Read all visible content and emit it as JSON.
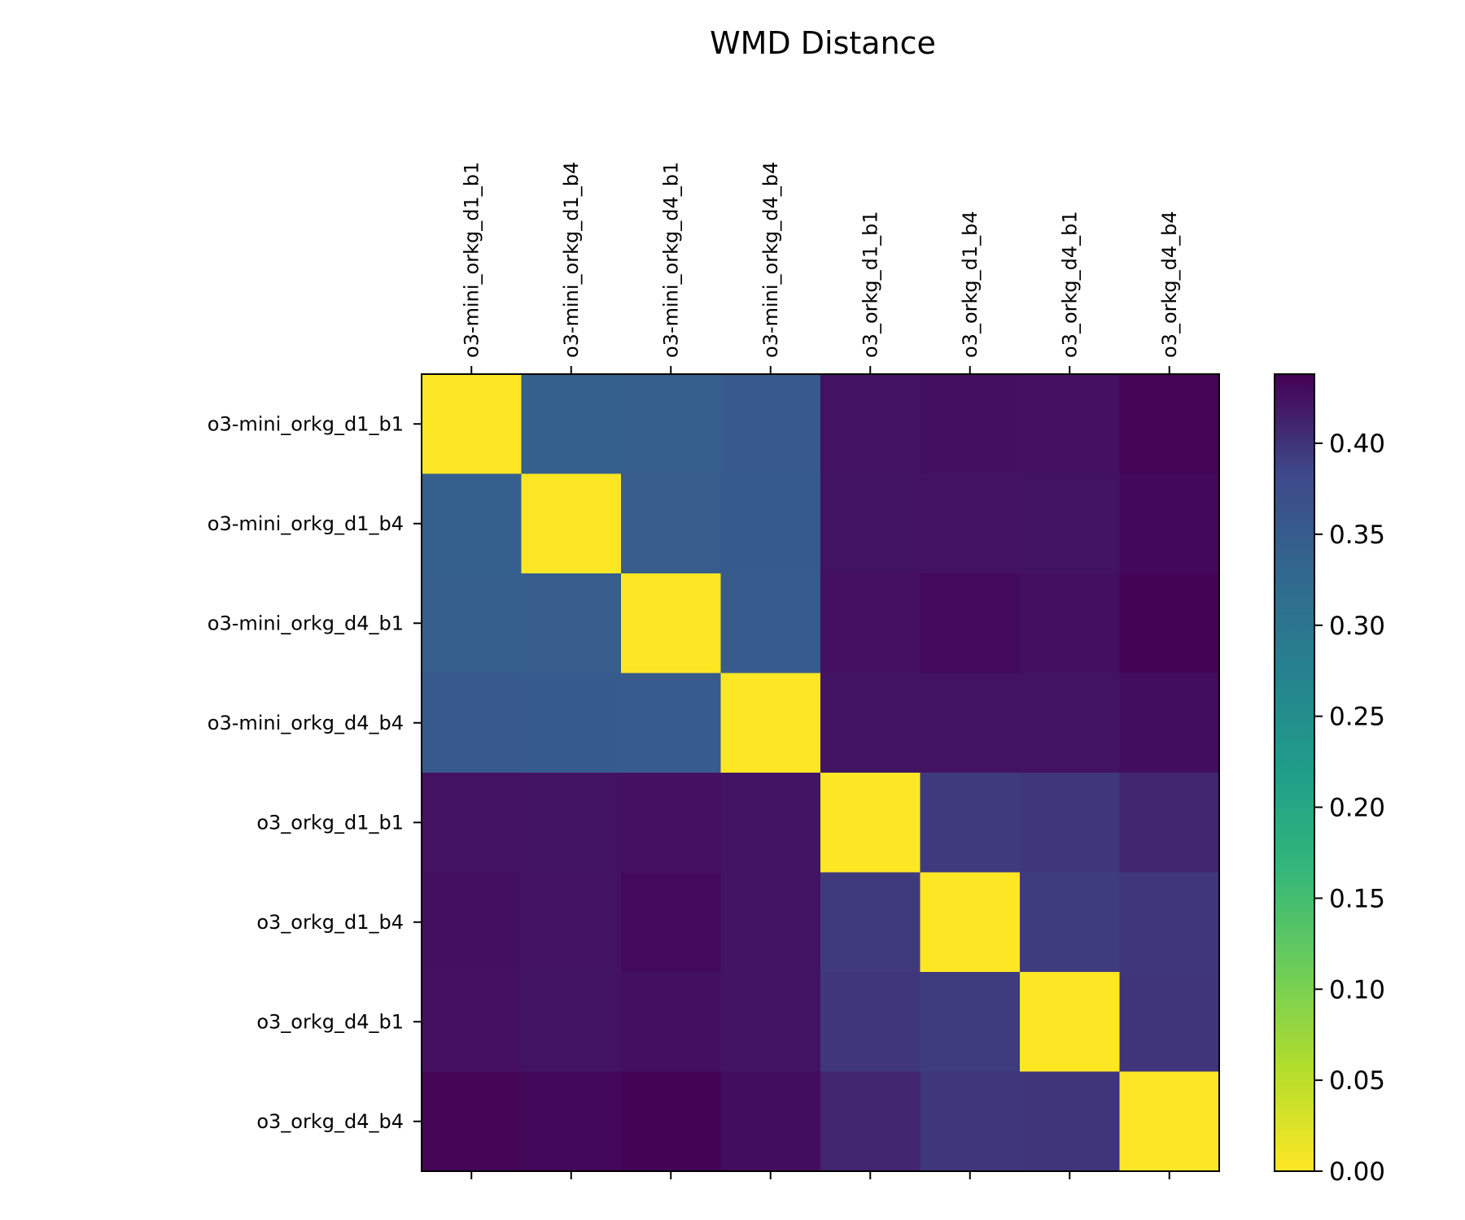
{
  "chart_data": {
    "type": "heatmap",
    "title": "WMD Distance",
    "colormap": "viridis_r",
    "x_labels": [
      "o3-mini_orkg_d1_b1",
      "o3-mini_orkg_d1_b4",
      "o3-mini_orkg_d4_b1",
      "o3-mini_orkg_d4_b4",
      "o3_orkg_d1_b1",
      "o3_orkg_d1_b4",
      "o3_orkg_d4_b1",
      "o3_orkg_d4_b4"
    ],
    "y_labels": [
      "o3-mini_orkg_d1_b1",
      "o3-mini_orkg_d1_b4",
      "o3-mini_orkg_d4_b1",
      "o3-mini_orkg_d4_b4",
      "o3_orkg_d1_b1",
      "o3_orkg_d1_b4",
      "o3_orkg_d4_b1",
      "o3_orkg_d4_b4"
    ],
    "values": [
      [
        0.0,
        0.345,
        0.347,
        0.355,
        0.425,
        0.427,
        0.426,
        0.435
      ],
      [
        0.345,
        0.0,
        0.348,
        0.353,
        0.424,
        0.425,
        0.424,
        0.433
      ],
      [
        0.347,
        0.348,
        0.0,
        0.352,
        0.426,
        0.432,
        0.427,
        0.436
      ],
      [
        0.355,
        0.353,
        0.352,
        0.0,
        0.423,
        0.424,
        0.424,
        0.429
      ],
      [
        0.425,
        0.424,
        0.426,
        0.423,
        0.0,
        0.395,
        0.398,
        0.41
      ],
      [
        0.427,
        0.425,
        0.432,
        0.424,
        0.395,
        0.0,
        0.394,
        0.398
      ],
      [
        0.426,
        0.424,
        0.427,
        0.424,
        0.398,
        0.394,
        0.0,
        0.399
      ],
      [
        0.435,
        0.433,
        0.436,
        0.429,
        0.41,
        0.398,
        0.399,
        0.0
      ]
    ],
    "colorbar": {
      "min": 0.0,
      "max": 0.438,
      "ticks": [
        "0.00",
        "0.05",
        "0.10",
        "0.15",
        "0.20",
        "0.25",
        "0.30",
        "0.35",
        "0.40"
      ]
    }
  }
}
